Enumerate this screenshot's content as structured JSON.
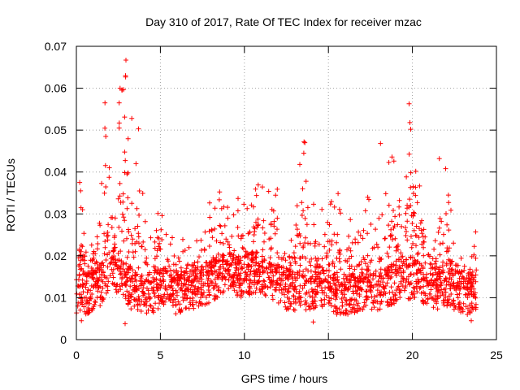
{
  "chart_data": {
    "type": "scatter",
    "title": "Day 310 of 2017, Rate Of TEC Index for receiver mzac",
    "xlabel": "GPS time / hours",
    "ylabel": "ROTI / TECUs",
    "xlim": [
      0,
      25
    ],
    "ylim": [
      0,
      0.07
    ],
    "x_ticks": [
      0,
      5,
      10,
      15,
      20,
      25
    ],
    "x_tick_labels": [
      "0",
      "5",
      "10",
      "15",
      "20",
      "25"
    ],
    "y_ticks": [
      0,
      0.01,
      0.02,
      0.03,
      0.04,
      0.05,
      0.06,
      0.07
    ],
    "y_tick_labels": [
      "0",
      "0.01",
      "0.02",
      "0.03",
      "0.04",
      "0.05",
      "0.06",
      "0.07"
    ],
    "grid": true,
    "marker": "+",
    "marker_color": "#ff0000",
    "series": [
      {
        "name": "ROTI",
        "envelope": {
          "x": [
            0.0,
            0.3,
            0.6,
            1.0,
            1.4,
            1.7,
            2.0,
            2.3,
            2.6,
            2.9,
            3.3,
            3.7,
            4.2,
            4.6,
            5.0,
            5.5,
            6.0,
            6.5,
            7.0,
            7.5,
            8.0,
            8.4,
            8.8,
            9.2,
            9.6,
            10.0,
            10.5,
            11.0,
            11.5,
            12.0,
            12.5,
            13.0,
            13.5,
            14.0,
            14.5,
            15.0,
            15.5,
            16.0,
            16.5,
            17.0,
            17.5,
            18.0,
            18.5,
            19.0,
            19.5,
            20.0,
            20.5,
            21.0,
            21.5,
            22.0,
            22.5,
            23.0,
            23.5,
            23.8
          ],
          "base": [
            0.011,
            0.012,
            0.011,
            0.012,
            0.013,
            0.015,
            0.017,
            0.016,
            0.015,
            0.014,
            0.012,
            0.012,
            0.011,
            0.011,
            0.012,
            0.012,
            0.011,
            0.012,
            0.012,
            0.013,
            0.014,
            0.015,
            0.016,
            0.016,
            0.015,
            0.015,
            0.016,
            0.016,
            0.015,
            0.013,
            0.012,
            0.012,
            0.012,
            0.012,
            0.013,
            0.012,
            0.011,
            0.011,
            0.011,
            0.012,
            0.012,
            0.012,
            0.013,
            0.013,
            0.014,
            0.015,
            0.014,
            0.013,
            0.012,
            0.013,
            0.012,
            0.011,
            0.011,
            0.011
          ],
          "upper": [
            0.02,
            0.035,
            0.02,
            0.025,
            0.03,
            0.055,
            0.04,
            0.03,
            0.058,
            0.066,
            0.035,
            0.048,
            0.028,
            0.025,
            0.037,
            0.022,
            0.028,
            0.023,
            0.023,
            0.027,
            0.034,
            0.037,
            0.035,
            0.03,
            0.035,
            0.033,
            0.035,
            0.04,
            0.038,
            0.037,
            0.025,
            0.028,
            0.046,
            0.038,
            0.03,
            0.036,
            0.037,
            0.026,
            0.032,
            0.036,
            0.034,
            0.029,
            0.046,
            0.042,
            0.038,
            0.055,
            0.039,
            0.025,
            0.026,
            0.042,
            0.024,
            0.02,
            0.022,
            0.027
          ]
        },
        "points": [
          {
            "x": 2.95,
            "y": 0.0667
          },
          {
            "x": 2.6,
            "y": 0.06
          },
          {
            "x": 2.55,
            "y": 0.0565
          },
          {
            "x": 1.7,
            "y": 0.0565
          },
          {
            "x": 2.55,
            "y": 0.0505
          },
          {
            "x": 1.75,
            "y": 0.0485
          },
          {
            "x": 3.3,
            "y": 0.0528
          },
          {
            "x": 3.7,
            "y": 0.0503
          },
          {
            "x": 19.8,
            "y": 0.0563
          },
          {
            "x": 19.85,
            "y": 0.0518
          },
          {
            "x": 19.9,
            "y": 0.0502
          },
          {
            "x": 13.55,
            "y": 0.0472
          },
          {
            "x": 13.6,
            "y": 0.047
          },
          {
            "x": 18.1,
            "y": 0.0468
          },
          {
            "x": 21.6,
            "y": 0.0432
          },
          {
            "x": 13.3,
            "y": 0.0418
          },
          {
            "x": 18.6,
            "y": 0.0423
          },
          {
            "x": 20.2,
            "y": 0.0402
          },
          {
            "x": 0.2,
            "y": 0.0375
          },
          {
            "x": 0.25,
            "y": 0.0355
          },
          {
            "x": 2.9,
            "y": 0.0038
          },
          {
            "x": 0.3,
            "y": 0.0045
          },
          {
            "x": 14.1,
            "y": 0.0042
          },
          {
            "x": 23.5,
            "y": 0.0045
          }
        ]
      }
    ]
  }
}
